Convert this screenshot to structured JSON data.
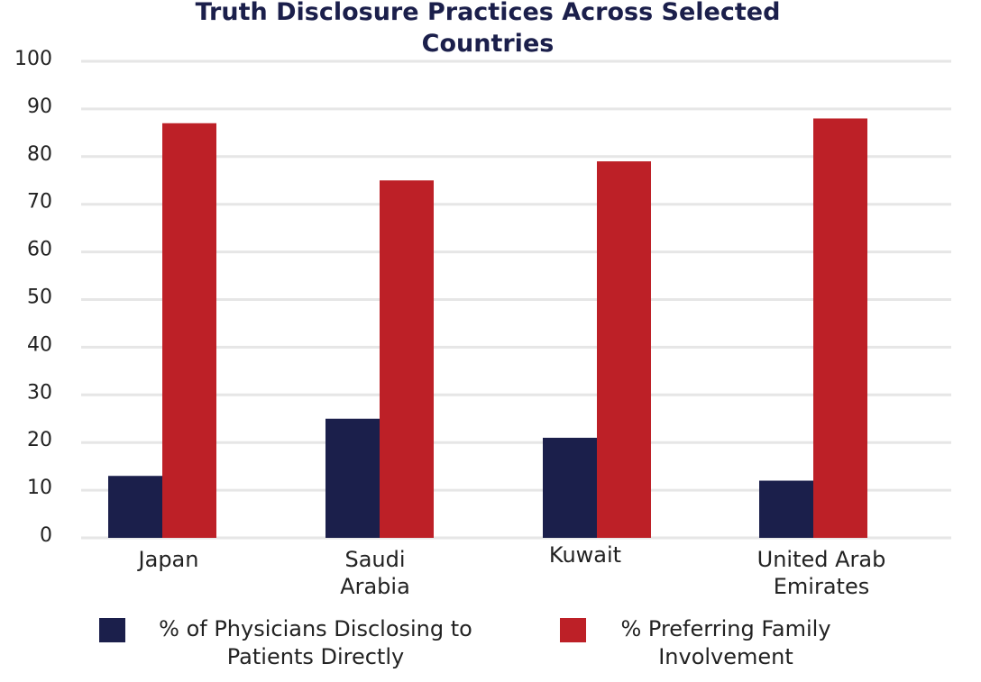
{
  "chart_data": {
    "type": "bar",
    "title": "Truth Disclosure Practices Across Selected Countries",
    "title_lines": [
      "Truth Disclosure Practices Across Selected",
      "Countries"
    ],
    "categories": [
      "Japan",
      "Saudi Arabia",
      "Kuwait",
      "United Arab Emirates"
    ],
    "category_lines": [
      [
        "Japan"
      ],
      [
        "Saudi",
        "Arabia"
      ],
      [
        "Kuwait"
      ],
      [
        "United Arab",
        "Emirates"
      ]
    ],
    "series": [
      {
        "name": "% of Physicians Disclosing to Patients Directly",
        "name_lines": [
          "% of Physicians Disclosing to",
          "Patients Directly"
        ],
        "color": "#1b1f4b",
        "values": [
          13,
          25,
          21,
          12
        ]
      },
      {
        "name": "% Preferring Family Involvement",
        "name_lines": [
          "% Preferring Family",
          "Involvement"
        ],
        "color": "#bd2027",
        "values": [
          87,
          75,
          79,
          88
        ]
      }
    ],
    "ylim": [
      0,
      100
    ],
    "yticks": [
      0,
      10,
      20,
      30,
      40,
      50,
      60,
      70,
      80,
      90,
      100
    ],
    "xlabel": "",
    "ylabel": "",
    "grid": true,
    "legend_position": "bottom"
  }
}
